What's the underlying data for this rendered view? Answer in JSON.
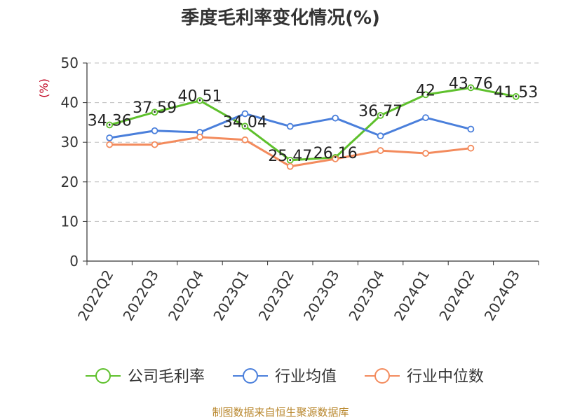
{
  "title": "季度毛利率变化情况(%)",
  "source_note": "制图数据来自恒生聚源数据库",
  "colors": {
    "series": [
      "#5ec02c",
      "#4a7fdb",
      "#f38b5d"
    ],
    "axis": "#333333",
    "grid": "#bdbdbd",
    "ylabel": "#c0001e",
    "source": "#b8862b"
  },
  "chart_data": {
    "type": "line",
    "title": "季度毛利率变化情况(%)",
    "xlabel": "",
    "ylabel": "(%)",
    "categories": [
      "2022Q2",
      "2022Q3",
      "2022Q4",
      "2023Q1",
      "2023Q2",
      "2023Q3",
      "2023Q4",
      "2024Q1",
      "2024Q2",
      "2024Q3"
    ],
    "ylim": [
      0,
      50
    ],
    "yticks": [
      0,
      10,
      20,
      30,
      40,
      50
    ],
    "grid": "horizontal dashed",
    "legend_position": "bottom",
    "series": [
      {
        "name": "公司毛利率",
        "values": [
          34.36,
          37.59,
          40.51,
          34.04,
          25.47,
          26.16,
          36.77,
          42,
          43.76,
          41.53
        ],
        "labels": [
          "34.36",
          "37.59",
          "40.51",
          "34.04",
          "25.47",
          "26.16",
          "36.77",
          "42",
          "43.76",
          "41.53"
        ]
      },
      {
        "name": "行业均值",
        "values": [
          31.1,
          32.9,
          32.5,
          37.2,
          34.0,
          36.1,
          31.6,
          36.2,
          33.3,
          null
        ]
      },
      {
        "name": "行业中位数",
        "values": [
          29.4,
          29.4,
          31.3,
          30.6,
          23.9,
          25.8,
          27.9,
          27.2,
          28.5,
          null
        ]
      }
    ]
  }
}
